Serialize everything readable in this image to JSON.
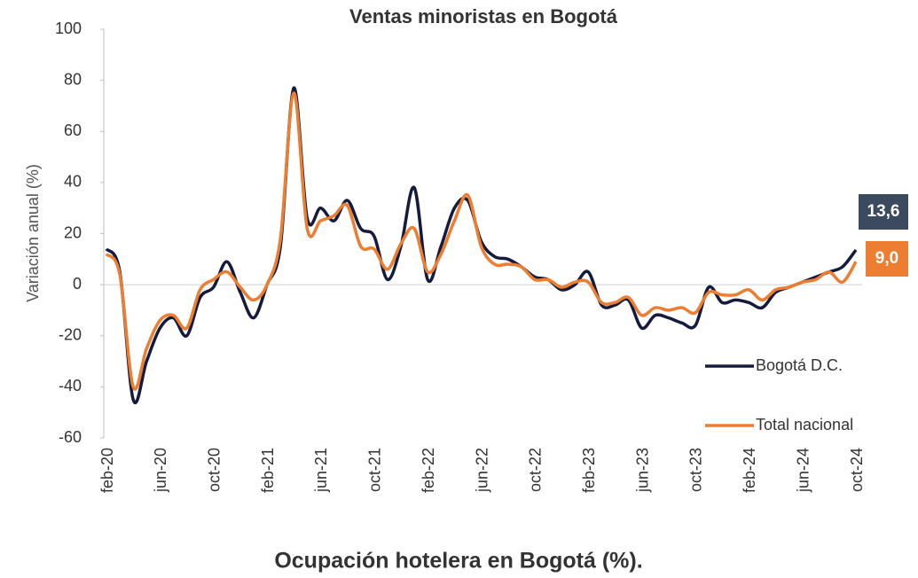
{
  "chart_data": {
    "type": "line",
    "title": "Ventas minoristas en Bogotá",
    "y_label": "Variación anual (%)",
    "categories": [
      "feb-20",
      null,
      null,
      null,
      "jun-20",
      null,
      null,
      null,
      "oct-20",
      null,
      null,
      null,
      "feb-21",
      null,
      null,
      null,
      "jun-21",
      null,
      null,
      null,
      "oct-21",
      null,
      null,
      null,
      "feb-22",
      null,
      null,
      null,
      "jun-22",
      null,
      null,
      null,
      "oct-22",
      null,
      null,
      null,
      "feb-23",
      null,
      null,
      null,
      "jun-23",
      null,
      null,
      null,
      "oct-23",
      null,
      null,
      null,
      "feb-24",
      null,
      null,
      null,
      "jun-24",
      null,
      null,
      null,
      "oct-24"
    ],
    "series": [
      {
        "name": "Bogotá D.C.",
        "color": "#141b3c",
        "label_color": "#3b4a5e",
        "values": [
          14,
          5,
          -45,
          -30,
          -17,
          -13,
          -20,
          -5,
          -1,
          9,
          -3,
          -13,
          0,
          15,
          77,
          26,
          30,
          25,
          33,
          22,
          19,
          2,
          15,
          38,
          2,
          15,
          30,
          33,
          17,
          11,
          10,
          7,
          3,
          2,
          -2,
          0,
          5,
          -8,
          -8,
          -6,
          -17,
          -12,
          -13,
          -15,
          -16,
          -1,
          -7,
          -6,
          -7,
          -9,
          -3,
          -1,
          1,
          3,
          5,
          7,
          13.6
        ],
        "value_labels": [
          null,
          null,
          null,
          null,
          null,
          null,
          null,
          null,
          null,
          null,
          null,
          null,
          null,
          null,
          null,
          null,
          null,
          null,
          null,
          null,
          null,
          null,
          null,
          null,
          null,
          null,
          null,
          null,
          null,
          null,
          null,
          null,
          null,
          null,
          null,
          null,
          null,
          null,
          null,
          null,
          null,
          null,
          null,
          null,
          null,
          null,
          null,
          null,
          null,
          null,
          null,
          null,
          null,
          null,
          null,
          null,
          "13,6"
        ]
      },
      {
        "name": "Total nacional",
        "color": "#ed7d31",
        "label_color": "#ed7d31",
        "values": [
          12,
          4,
          -40,
          -25,
          -14,
          -12,
          -17,
          -2,
          2,
          5,
          -1,
          -6,
          0,
          18,
          75,
          22,
          25,
          27,
          31,
          15,
          14,
          6,
          16,
          22,
          5,
          12,
          25,
          35,
          15,
          8,
          8,
          7,
          2,
          2,
          -1,
          1,
          1,
          -7,
          -7,
          -5,
          -12,
          -9,
          -10,
          -9,
          -11,
          -3,
          -4,
          -4,
          -2,
          -6,
          -2,
          -1,
          1,
          2,
          5,
          1,
          9.0
        ],
        "value_labels": [
          null,
          null,
          null,
          null,
          null,
          null,
          null,
          null,
          null,
          null,
          null,
          null,
          null,
          null,
          null,
          null,
          null,
          null,
          null,
          null,
          null,
          null,
          null,
          null,
          null,
          null,
          null,
          null,
          null,
          null,
          null,
          null,
          null,
          null,
          null,
          null,
          null,
          null,
          null,
          null,
          null,
          null,
          null,
          null,
          null,
          null,
          null,
          null,
          null,
          null,
          null,
          null,
          null,
          null,
          null,
          null,
          "9,0"
        ]
      }
    ],
    "ylim": [
      -60,
      100
    ],
    "yticks": [
      -60,
      -40,
      -20,
      0,
      20,
      40,
      60,
      80,
      100
    ]
  },
  "footer": "Ocupación hotelera en Bogotá (%)."
}
